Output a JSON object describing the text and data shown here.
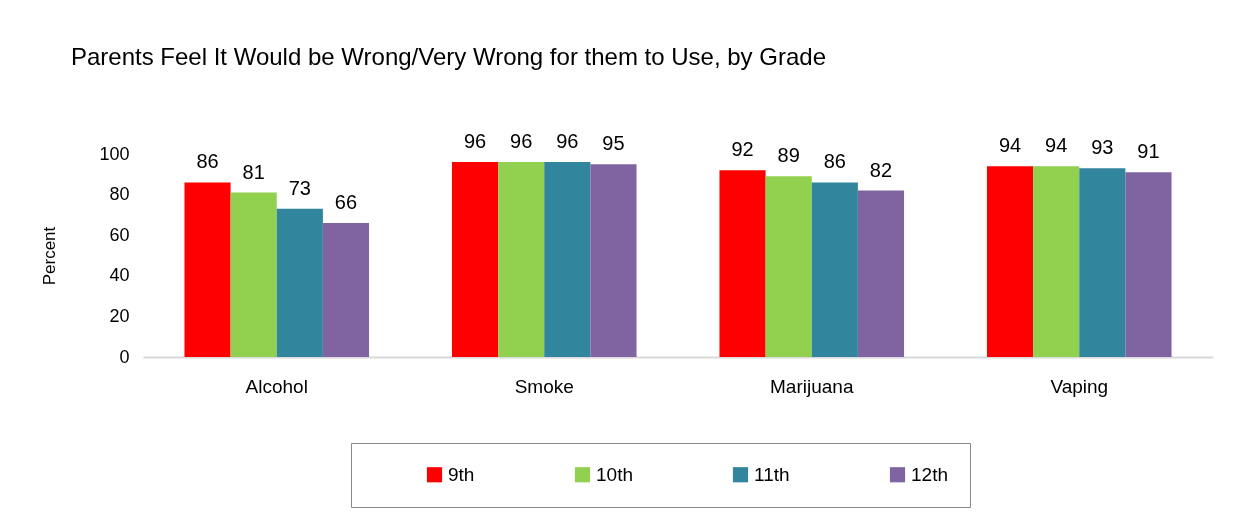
{
  "chart_data": {
    "type": "bar",
    "title": "Parents Feel It Would be Wrong/Very Wrong for them to Use, by Grade",
    "ylabel": "Percent",
    "categories": [
      "Alcohol",
      "Smoke",
      "Marijuana",
      "Vaping"
    ],
    "series": [
      {
        "name": "9th",
        "color": "#ff0000",
        "values": [
          86,
          96,
          92,
          94
        ]
      },
      {
        "name": "10th",
        "color": "#92d050",
        "values": [
          81,
          96,
          89,
          94
        ]
      },
      {
        "name": "11th",
        "color": "#31859c",
        "values": [
          73,
          96,
          86,
          93
        ]
      },
      {
        "name": "12th",
        "color": "#8064a2",
        "values": [
          66,
          95,
          82,
          91
        ]
      }
    ],
    "ylim": [
      0,
      100
    ],
    "yticks": [
      0,
      20,
      40,
      60,
      80,
      100
    ],
    "data_labels": true,
    "legend": "bottom"
  }
}
